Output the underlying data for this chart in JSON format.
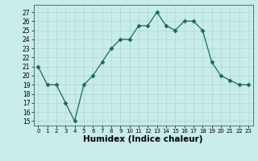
{
  "x": [
    0,
    1,
    2,
    3,
    4,
    5,
    6,
    7,
    8,
    9,
    10,
    11,
    12,
    13,
    14,
    15,
    16,
    17,
    18,
    19,
    20,
    21,
    22,
    23
  ],
  "y": [
    21,
    19,
    19,
    17,
    15,
    19,
    20,
    21.5,
    23,
    24,
    24,
    25.5,
    25.5,
    27,
    25.5,
    25,
    26,
    26,
    25,
    21.5,
    20,
    19.5,
    19,
    19
  ],
  "line_color": "#1a6b5a",
  "marker": "D",
  "marker_size": 2.5,
  "bg_color": "#c8ecea",
  "grid_color": "#b0d4d0",
  "xlabel": "Humidex (Indice chaleur)",
  "xlabel_fontsize": 7.5,
  "ylabel_ticks": [
    15,
    16,
    17,
    18,
    19,
    20,
    21,
    22,
    23,
    24,
    25,
    26,
    27
  ],
  "ylim": [
    14.5,
    27.8
  ],
  "xlim": [
    -0.5,
    23.5
  ]
}
